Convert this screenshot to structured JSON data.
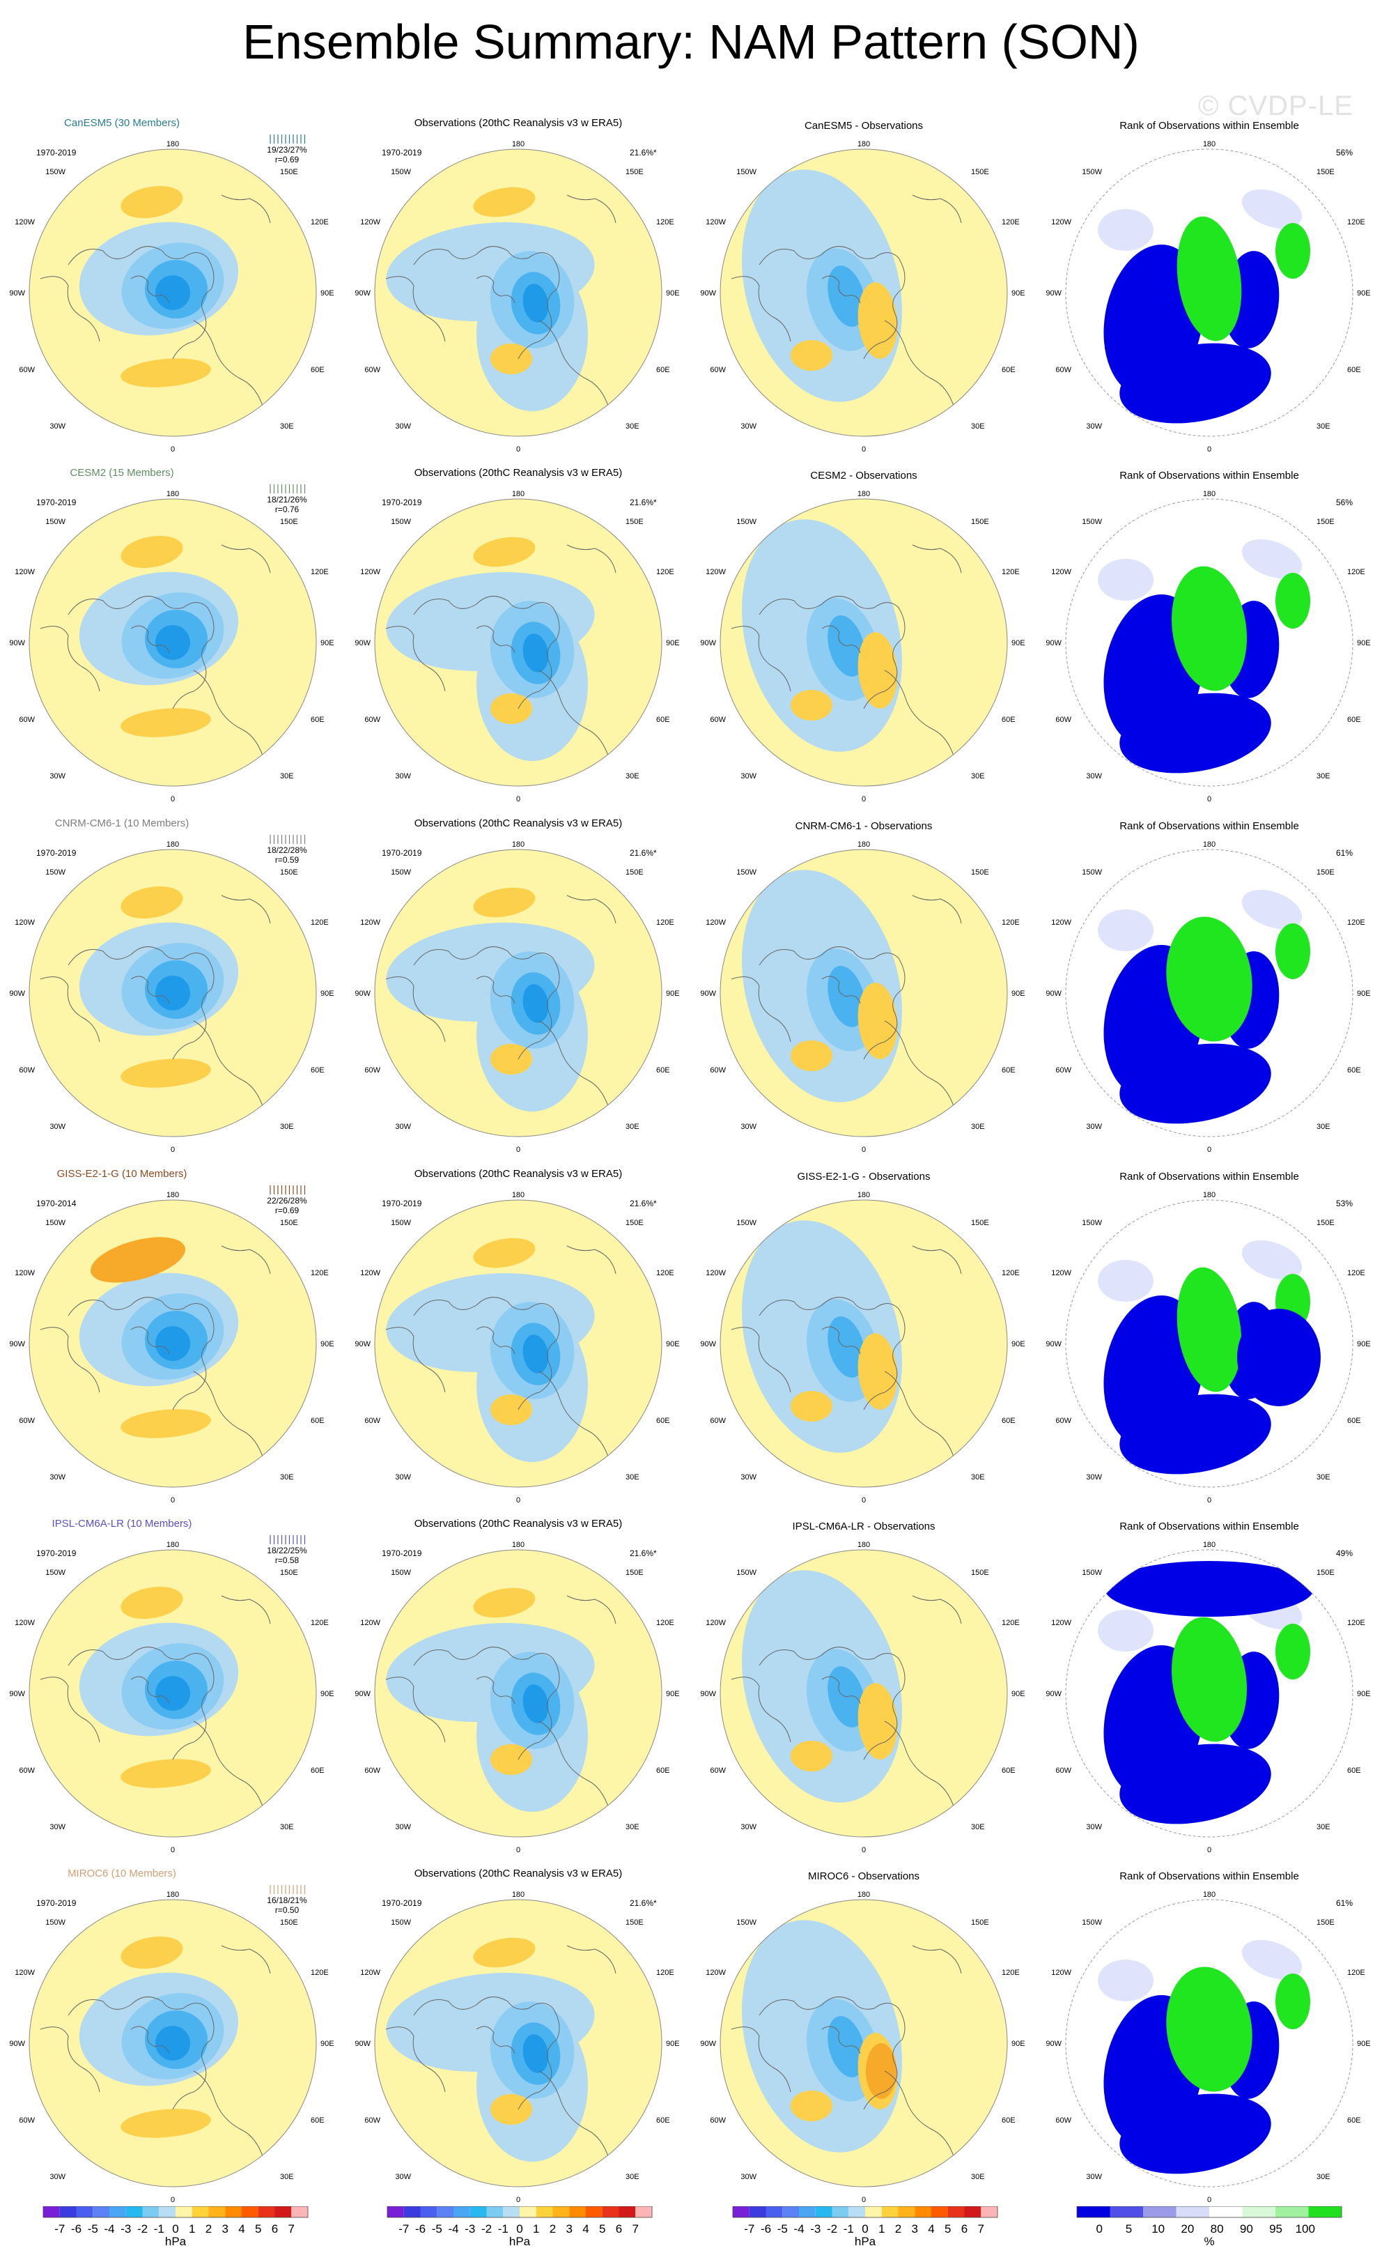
{
  "title": "Ensemble Summary: NAM Pattern (SON)",
  "watermark": "© CVDP-LE",
  "compass_labels": {
    "top": "180",
    "upper_left": "150W",
    "upper_right": "150E",
    "mid_upper_left": "120W",
    "mid_upper_right": "120E",
    "left": "90W",
    "right": "90E",
    "mid_lower_left": "60W",
    "mid_lower_right": "60E",
    "lower_left": "30W",
    "lower_right": "30E",
    "bottom": "0"
  },
  "rows": [
    {
      "model": "CanESM5 (30 Members)",
      "model_color": "#2a7c8e",
      "model_years": "1970-2019",
      "stats": "19/23/27%",
      "r": "r=0.69",
      "obs_title": "Observations (20thC Reanalysis v3 w ERA5)",
      "obs_years": "1970-2019",
      "obs_pct": "21.6%*",
      "diff_title": "CanESM5 - Observations",
      "rank_title": "Rank of Observations within Ensemble",
      "rank_pct": "56%"
    },
    {
      "model": "CESM2 (15 Members)",
      "model_color": "#5f8f62",
      "model_years": "1970-2019",
      "stats": "18/21/26%",
      "r": "r=0.76",
      "obs_title": "Observations (20thC Reanalysis v3 w ERA5)",
      "obs_years": "1970-2019",
      "obs_pct": "21.6%*",
      "diff_title": "CESM2 - Observations",
      "rank_title": "Rank of Observations within Ensemble",
      "rank_pct": "56%"
    },
    {
      "model": "CNRM-CM6-1 (10 Members)",
      "model_color": "#7d7d7d",
      "model_years": "1970-2019",
      "stats": "18/22/28%",
      "r": "r=0.59",
      "obs_title": "Observations (20thC Reanalysis v3 w ERA5)",
      "obs_years": "1970-2019",
      "obs_pct": "21.6%*",
      "diff_title": "CNRM-CM6-1 - Observations",
      "rank_title": "Rank of Observations within Ensemble",
      "rank_pct": "61%"
    },
    {
      "model": "GISS-E2-1-G (10 Members)",
      "model_color": "#8b4a1e",
      "model_years": "1970-2014",
      "stats": "22/26/28%",
      "r": "r=0.69",
      "obs_title": "Observations (20thC Reanalysis v3 w ERA5)",
      "obs_years": "1970-2019",
      "obs_pct": "21.6%*",
      "diff_title": "GISS-E2-1-G - Observations",
      "rank_title": "Rank of Observations within Ensemble",
      "rank_pct": "53%"
    },
    {
      "model": "IPSL-CM6A-LR (10 Members)",
      "model_color": "#5a4fc4",
      "model_years": "1970-2019",
      "stats": "18/22/25%",
      "r": "r=0.58",
      "obs_title": "Observations (20thC Reanalysis v3 w ERA5)",
      "obs_years": "1970-2019",
      "obs_pct": "21.6%*",
      "diff_title": "IPSL-CM6A-LR - Observations",
      "rank_title": "Rank of Observations within Ensemble",
      "rank_pct": "49%"
    },
    {
      "model": "MIROC6 (10 Members)",
      "model_color": "#d2a074",
      "model_years": "1970-2019",
      "stats": "16/18/21%",
      "r": "r=0.50",
      "obs_title": "Observations (20thC Reanalysis v3 w ERA5)",
      "obs_years": "1970-2019",
      "obs_pct": "21.6%*",
      "diff_title": "MIROC6 - Observations",
      "rank_title": "Rank of Observations within Ensemble",
      "rank_pct": "61%"
    }
  ],
  "colorbars": {
    "hpa": {
      "ticks": [
        "-7",
        "-6",
        "-5",
        "-4",
        "-3",
        "-2",
        "-1",
        "0",
        "1",
        "2",
        "3",
        "4",
        "5",
        "6",
        "7"
      ],
      "unit": "hPa",
      "colors": [
        "#7a1fd8",
        "#3b3be0",
        "#4a5ef0",
        "#5a82f5",
        "#4aa6f5",
        "#28b8f0",
        "#7ccbf0",
        "#b7def2",
        "#fff5a8",
        "#ffd23c",
        "#ffb21a",
        "#ff8a00",
        "#ff5a00",
        "#e8321a",
        "#d21a1a",
        "#ffb5b5"
      ]
    },
    "rank": {
      "ticks": [
        "0",
        "5",
        "10",
        "20",
        "80",
        "90",
        "95",
        "100"
      ],
      "unit": "%",
      "colors": [
        "#0000e0",
        "#5050e8",
        "#9a9ae8",
        "#d8dcf8",
        "#ffffff",
        "#d8f8d8",
        "#a0f0a0",
        "#20e020"
      ]
    }
  },
  "map_colors": {
    "pos_light": "#fdf5a7",
    "pos_mid": "#fcd04a",
    "pos_strong": "#f7a92a",
    "pos_deep": "#ee8a1c",
    "neg_light": "#b3daf0",
    "neg_mid": "#8ecdf3",
    "neg_strong": "#4ab3ef",
    "neg_deep": "#1f9ae9",
    "rank_blue": "#0000e6",
    "rank_pale": "#dfe3fb",
    "rank_green": "#1fe61f",
    "land": "#666666"
  }
}
